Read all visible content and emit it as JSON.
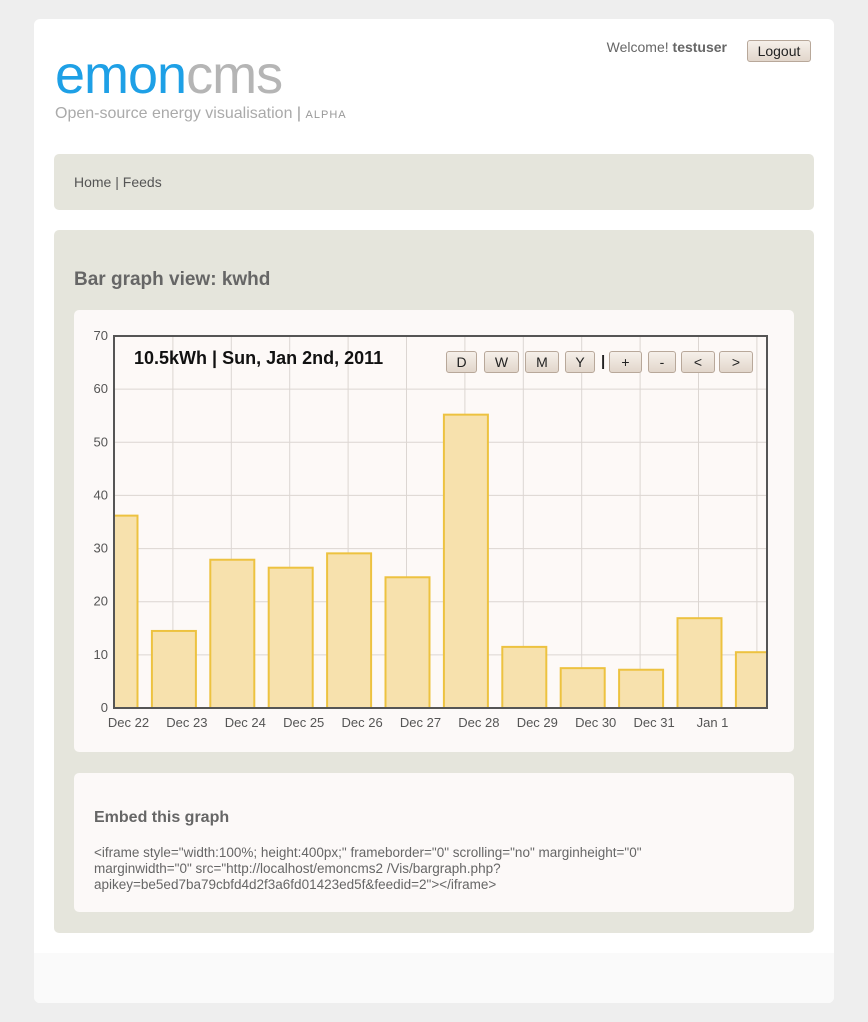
{
  "header": {
    "logo_part1": "emon",
    "logo_part2": "cms",
    "tagline": "Open-source energy visualisation",
    "tagline_sep": "|",
    "tagline_badge": "ALPHA",
    "welcome_prefix": "Welcome!",
    "username": "testuser",
    "logout_label": "Logout"
  },
  "nav": {
    "home": "Home",
    "separator": "|",
    "feeds": "Feeds"
  },
  "main": {
    "title": "Bar graph view: kwhd"
  },
  "graph": {
    "readout": "10.5kWh | Sun, Jan 2nd, 2011",
    "controls": [
      "D",
      "W",
      "M",
      "Y",
      "+",
      "-",
      "<",
      ">"
    ],
    "controls_separator": "|"
  },
  "embed": {
    "title": "Embed this graph",
    "code": "<iframe style=\"width:100%; height:400px;\" frameborder=\"0\" scrolling=\"no\" marginheight=\"0\" marginwidth=\"0\" src=\"http://localhost/emoncms2 /Vis/bargraph.php?apikey=be5ed7ba79cbfd4d2f3a6fd01423ed5f&feedid=2\"></iframe>"
  },
  "colors": {
    "logo_primary": "#1ea0e6",
    "logo_secondary": "#b5b5b5",
    "bar_fill": "#f7e1ad",
    "bar_stroke": "#edc240",
    "panel_bg": "#e5e5dc"
  },
  "chart_data": {
    "type": "bar",
    "categories": [
      "Dec 22",
      "Dec 23",
      "Dec 24",
      "Dec 25",
      "Dec 26",
      "Dec 27",
      "Dec 28",
      "Dec 29",
      "Dec 30",
      "Dec 31",
      "Jan 1",
      "Jan 2"
    ],
    "x_tick_labels": [
      "Dec 22",
      "Dec 23",
      "Dec 24",
      "Dec 25",
      "Dec 26",
      "Dec 27",
      "Dec 28",
      "Dec 29",
      "Dec 30",
      "Dec 31",
      "Jan 1"
    ],
    "values": [
      36.2,
      14.5,
      27.9,
      26.4,
      29.1,
      24.6,
      55.2,
      11.5,
      7.5,
      7.2,
      16.9,
      10.5
    ],
    "ylim": [
      0,
      70
    ],
    "y_ticks": [
      0,
      10,
      20,
      30,
      40,
      50,
      60,
      70
    ],
    "grid": true
  }
}
